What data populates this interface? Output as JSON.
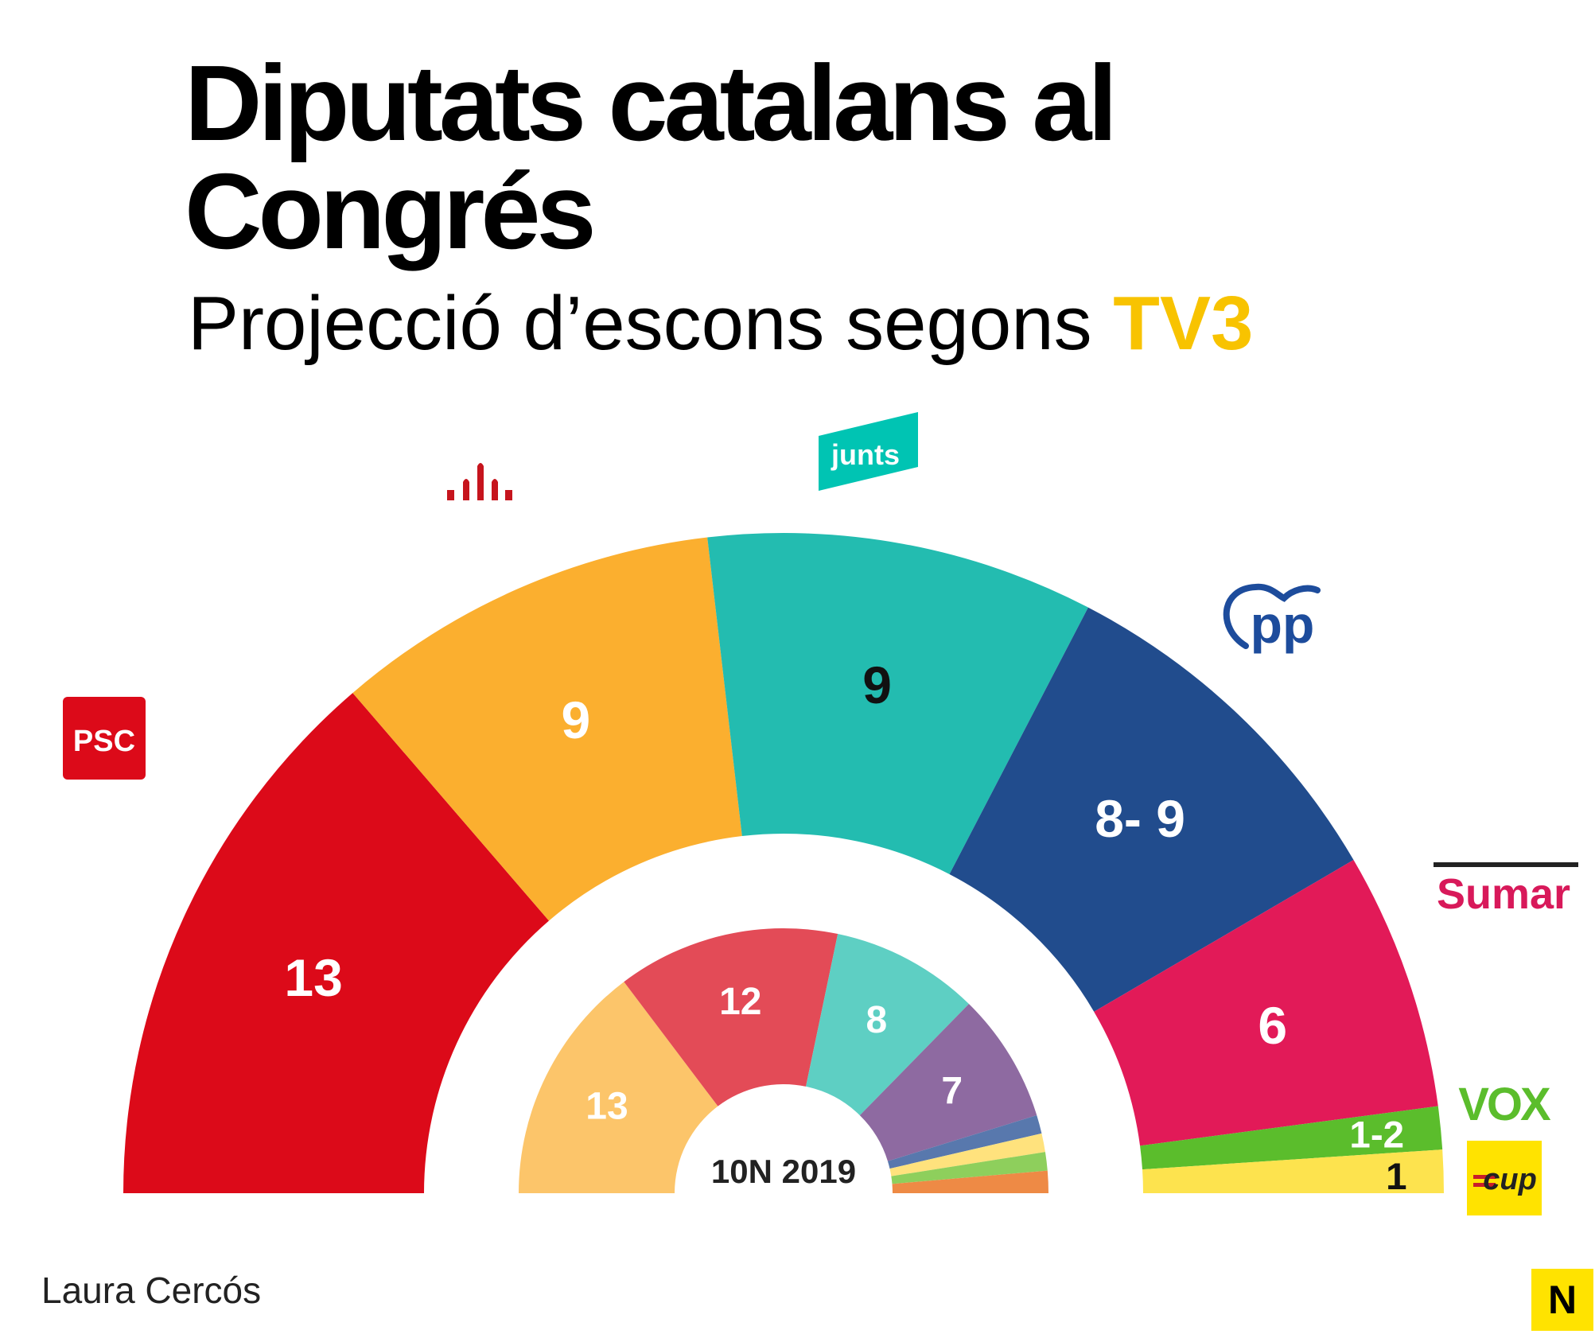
{
  "title": "Diputats catalans al Congrés",
  "subtitle": {
    "text": "Projecció d’escons segons",
    "highlight": "TV3",
    "highlight_color": "#f8c300"
  },
  "author": "Laura Cercós",
  "brand": "N",
  "chart_data": [
    {
      "type": "pie",
      "title": "Projecció d’escons segons TV3",
      "series": [
        {
          "party": "PSC",
          "label": "13",
          "seats": 13,
          "color": "#dc0a19",
          "logo_text": "PSC"
        },
        {
          "party": "ERC",
          "label": "9",
          "seats": 9,
          "color": "#fbaf2f",
          "logo_text": ""
        },
        {
          "party": "Junts",
          "label": "9",
          "seats": 9,
          "color": "#23bcb0",
          "logo_text": "junts"
        },
        {
          "party": "PP",
          "label": "8- 9",
          "seats": 8.5,
          "color": "#214c8d",
          "logo_text": "pp"
        },
        {
          "party": "Sumar",
          "label": "6",
          "seats": 6,
          "color": "#e21a58",
          "logo_text": "Sumar"
        },
        {
          "party": "Vox",
          "label": "1-2",
          "seats": 1,
          "color": "#5bbd2c",
          "logo_text": "VOX"
        },
        {
          "party": "CUP",
          "label": "1",
          "seats": 1,
          "color": "#fde34e",
          "logo_text": "cup"
        }
      ]
    },
    {
      "type": "pie",
      "title": "10N 2019",
      "series": [
        {
          "label": "13",
          "seats": 13,
          "color": "#fcc56a"
        },
        {
          "label": "12",
          "seats": 12,
          "color": "#e34b57"
        },
        {
          "label": "8",
          "seats": 8,
          "color": "#5ecfc3"
        },
        {
          "label": "7",
          "seats": 7,
          "color": "#8e6aa1"
        },
        {
          "label": "",
          "seats": 1,
          "color": "#5878ad"
        },
        {
          "label": "",
          "seats": 1,
          "color": "#ffe27d"
        },
        {
          "label": "",
          "seats": 1,
          "color": "#8ecf5c"
        },
        {
          "label": "",
          "seats": 1.2,
          "color": "#ee8a45"
        }
      ]
    }
  ]
}
